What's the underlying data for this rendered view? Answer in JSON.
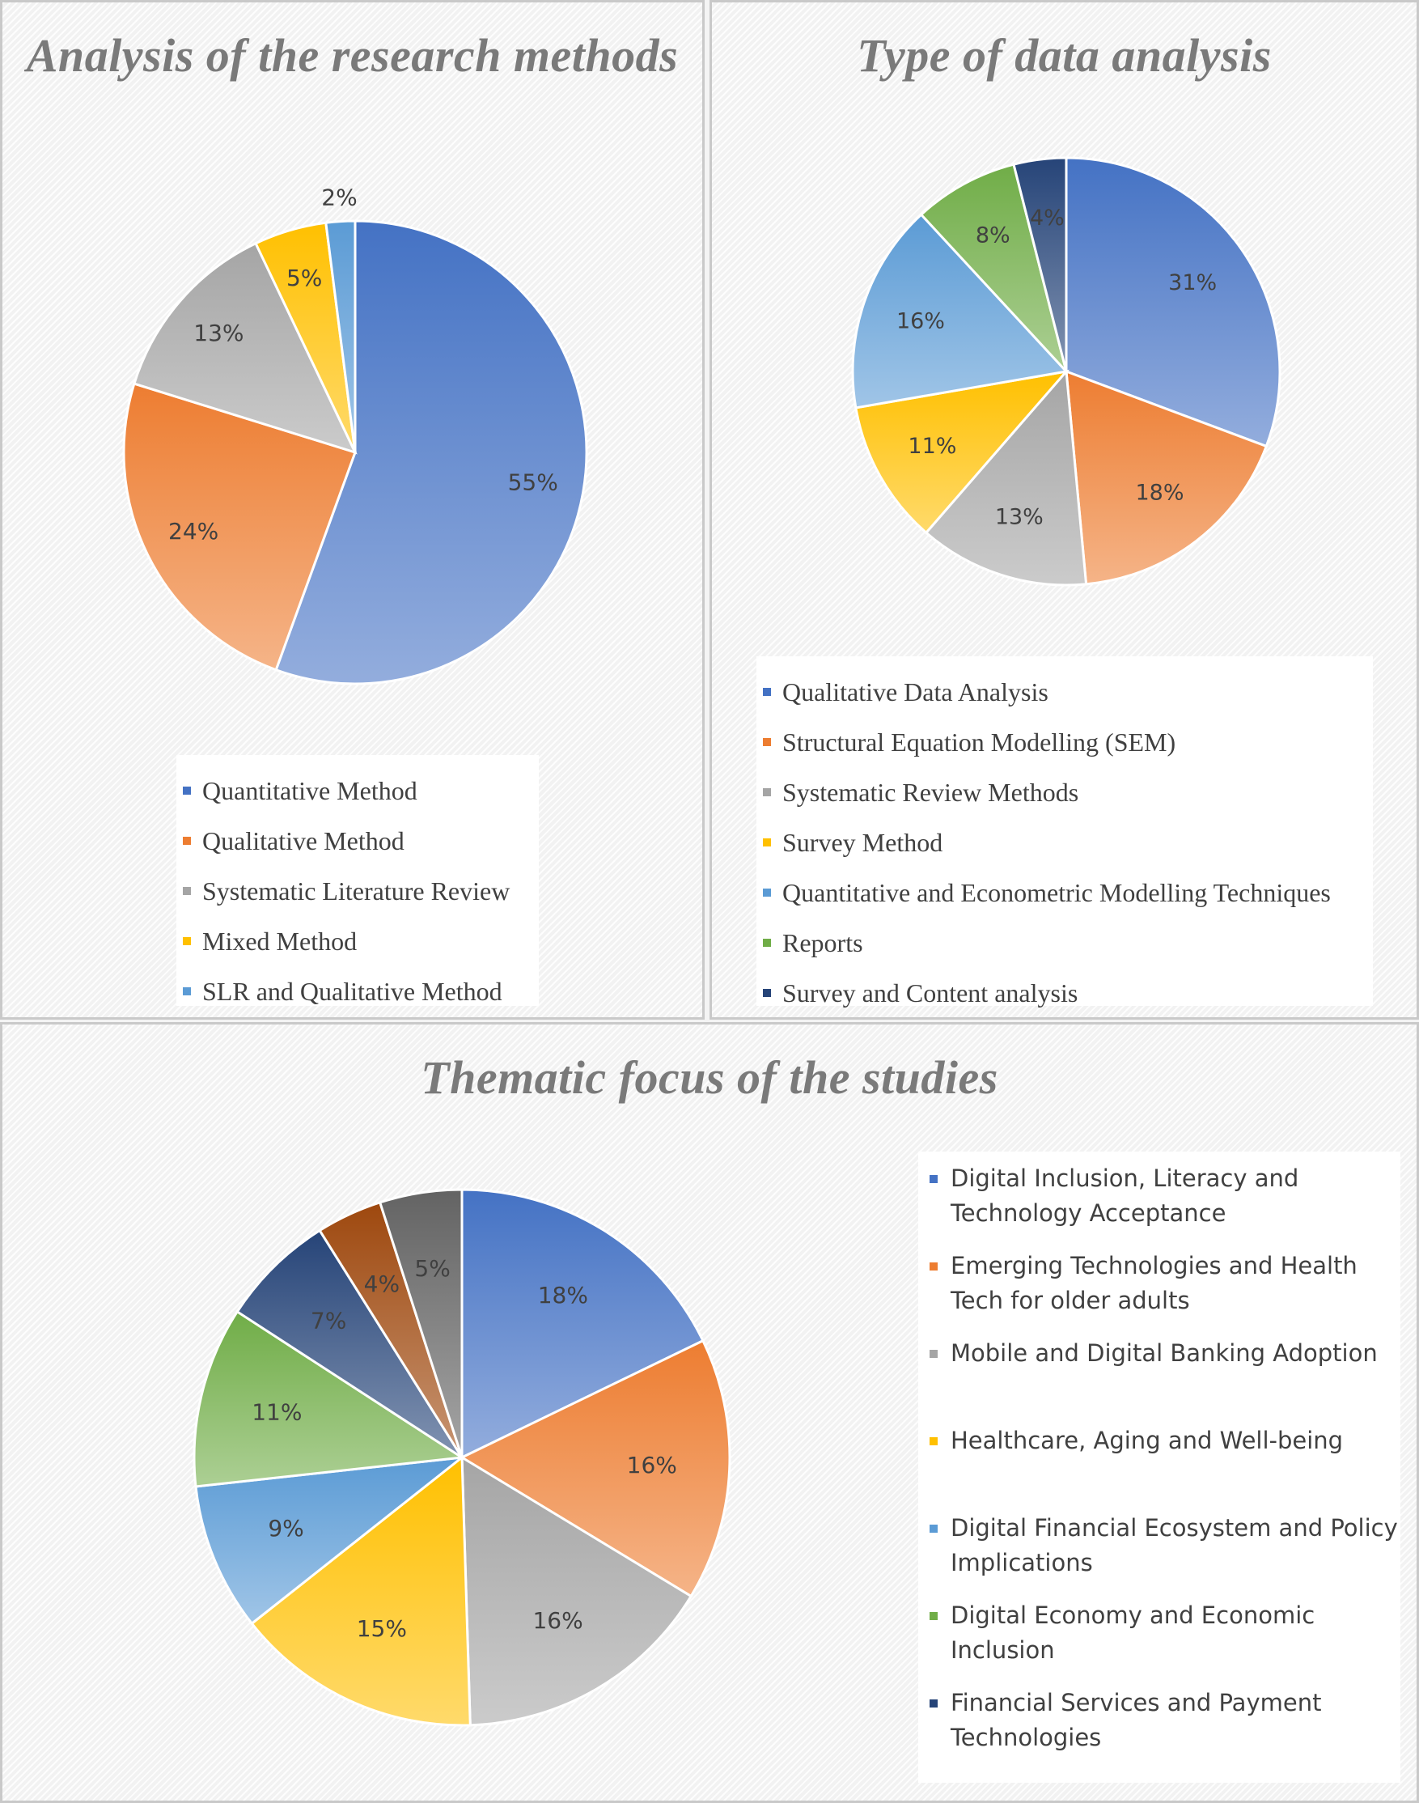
{
  "chart_data": [
    {
      "type": "pie",
      "title": "Analysis of the research methods",
      "categories": [
        "Quantitative Method",
        "Qualitative Method",
        "Systematic Literature Review",
        "Mixed Method",
        "SLR and Qualitative Method"
      ],
      "values": [
        55,
        24,
        13,
        5,
        2
      ],
      "labels": [
        "55%",
        "24%",
        "13%",
        "5%",
        "2%"
      ],
      "colors": [
        "#4472c4",
        "#ed7d31",
        "#a5a5a5",
        "#ffc000",
        "#5b9bd5"
      ],
      "legend_position": "bottom"
    },
    {
      "type": "pie",
      "title": "Type of data analysis",
      "categories": [
        "Qualitative Data Analysis",
        "Structural Equation Modelling (SEM)",
        "Systematic Review Methods",
        "Survey Method",
        "Quantitative and Econometric Modelling Techniques",
        "Reports",
        "Survey and Content analysis"
      ],
      "values": [
        31,
        18,
        13,
        11,
        16,
        8,
        4
      ],
      "labels": [
        "31%",
        "18%",
        "13%",
        "11%",
        "16%",
        "8%",
        "4%"
      ],
      "colors": [
        "#4472c4",
        "#ed7d31",
        "#a5a5a5",
        "#ffc000",
        "#5b9bd5",
        "#70ad47",
        "#264478"
      ],
      "legend_position": "bottom"
    },
    {
      "type": "pie",
      "title": "Thematic focus of the studies",
      "categories": [
        "Digital Inclusion, Literacy and Technology Acceptance",
        "Emerging Technologies and Health Tech for older adults",
        "Mobile and Digital Banking Adoption",
        "Healthcare, Aging and Well-being",
        "Digital Financial Ecosystem and Policy Implications",
        "Digital Economy and Economic Inclusion",
        "Financial Services and Payment Technologies",
        "",
        ""
      ],
      "values": [
        18,
        16,
        16,
        15,
        9,
        11,
        7,
        4,
        5
      ],
      "labels": [
        "18%",
        "16%",
        "16%",
        "15%",
        "9%",
        "11%",
        "7%",
        "4%",
        "5%"
      ],
      "colors": [
        "#4472c4",
        "#ed7d31",
        "#a5a5a5",
        "#ffc000",
        "#5b9bd5",
        "#70ad47",
        "#264478",
        "#9e480e",
        "#636363"
      ],
      "legend_position": "right"
    }
  ]
}
